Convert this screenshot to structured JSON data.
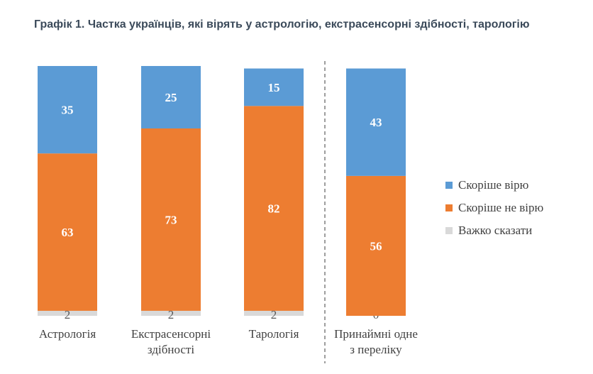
{
  "colors": {
    "believe": "#5b9bd5",
    "not_believe": "#ed7d31",
    "hard_to_say": "#d9d9d9",
    "divider": "#7f7f7f"
  },
  "chart_data": {
    "type": "bar",
    "stacked": true,
    "title": "Графік 1. Частка українців, які вірять у астрологію, екстрасенсорні здібності, тарологію",
    "categories": [
      [
        "Астрологія"
      ],
      [
        "Екстрасенсорні",
        "здібності"
      ],
      [
        "Тарологія"
      ],
      [
        "Принаймні одне",
        "з переліку"
      ]
    ],
    "series": [
      {
        "name": "Важко сказати",
        "values": [
          2,
          2,
          2,
          0
        ]
      },
      {
        "name": "Скоріше не вірю",
        "values": [
          63,
          73,
          82,
          56
        ]
      },
      {
        "name": "Скоріше вірю",
        "values": [
          35,
          25,
          15,
          43
        ]
      }
    ],
    "ylim": [
      0,
      100
    ],
    "grid": false,
    "legend_position": "right",
    "divider_before_category": 3
  }
}
